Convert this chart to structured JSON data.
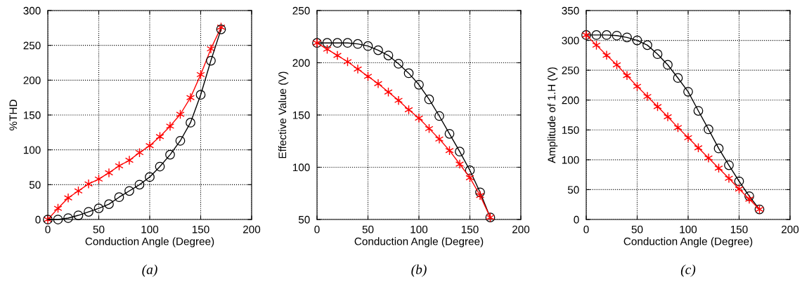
{
  "chart_data": [
    {
      "type": "line",
      "xlabel": "Conduction Angle (Degree)",
      "ylabel": "%THD",
      "annotations": [
        "(a)"
      ],
      "grid": true,
      "xlim": [
        0,
        200
      ],
      "xticks": [
        0,
        50,
        100,
        150,
        200
      ],
      "ylim": [
        0,
        300
      ],
      "yticks": [
        0,
        50,
        100,
        150,
        200,
        250,
        300
      ],
      "x": [
        0,
        10,
        20,
        30,
        40,
        50,
        60,
        70,
        80,
        90,
        100,
        110,
        120,
        130,
        140,
        150,
        160,
        170
      ],
      "series": [
        {
          "color": "#ff0000",
          "marker": "cross",
          "values": [
            0,
            16,
            31,
            41,
            51,
            58,
            67,
            77,
            85,
            96,
            106,
            119,
            134,
            151,
            175,
            208,
            245,
            276
          ]
        },
        {
          "color": "#000000",
          "marker": "circle",
          "values": [
            0,
            0,
            2,
            6,
            11,
            16,
            22,
            32,
            41,
            50,
            61,
            76,
            93,
            113,
            139,
            179,
            228,
            273
          ]
        }
      ]
    },
    {
      "type": "line",
      "xlabel": "Conduction Angle (Degree)",
      "ylabel": "Effective Value (V)",
      "annotations": [
        "(b)"
      ],
      "grid": true,
      "xlim": [
        0,
        200
      ],
      "xticks": [
        0,
        50,
        100,
        150,
        200
      ],
      "ylim": [
        50,
        250
      ],
      "yticks": [
        50,
        100,
        150,
        200,
        250
      ],
      "x": [
        0,
        10,
        20,
        30,
        40,
        50,
        60,
        70,
        80,
        90,
        100,
        110,
        120,
        130,
        140,
        150,
        160,
        170
      ],
      "series": [
        {
          "color": "#000000",
          "marker": "circle",
          "values": [
            219,
            219,
            219,
            219,
            218,
            216,
            212,
            207,
            199,
            190,
            179,
            165,
            149,
            132,
            115,
            97,
            76,
            52
          ]
        },
        {
          "color": "#ff0000",
          "marker": "cross",
          "values": [
            219,
            213,
            207,
            201,
            194,
            187,
            180,
            172,
            164,
            155,
            147,
            137,
            127,
            116,
            103,
            90,
            73,
            52
          ]
        }
      ]
    },
    {
      "type": "line",
      "xlabel": "Conduction Angle (Degree)",
      "ylabel": "Amplitude of 1.H (V)",
      "annotations": [
        "(c)"
      ],
      "grid": true,
      "xlim": [
        0,
        200
      ],
      "xticks": [
        0,
        50,
        100,
        150,
        200
      ],
      "ylim": [
        0,
        350
      ],
      "yticks": [
        0,
        50,
        100,
        150,
        200,
        250,
        300,
        350
      ],
      "x": [
        0,
        10,
        20,
        30,
        40,
        50,
        60,
        70,
        80,
        90,
        100,
        110,
        120,
        130,
        140,
        150,
        160,
        170
      ],
      "series": [
        {
          "color": "#000000",
          "marker": "circle",
          "values": [
            309,
            309,
            309,
            308,
            305,
            300,
            292,
            277,
            259,
            237,
            214,
            182,
            151,
            119,
            91,
            64,
            39,
            17
          ]
        },
        {
          "color": "#ff0000",
          "marker": "cross",
          "values": [
            309,
            292,
            275,
            259,
            241,
            223,
            206,
            189,
            172,
            154,
            137,
            120,
            103,
            86,
            69,
            51,
            34,
            17
          ]
        }
      ]
    }
  ]
}
